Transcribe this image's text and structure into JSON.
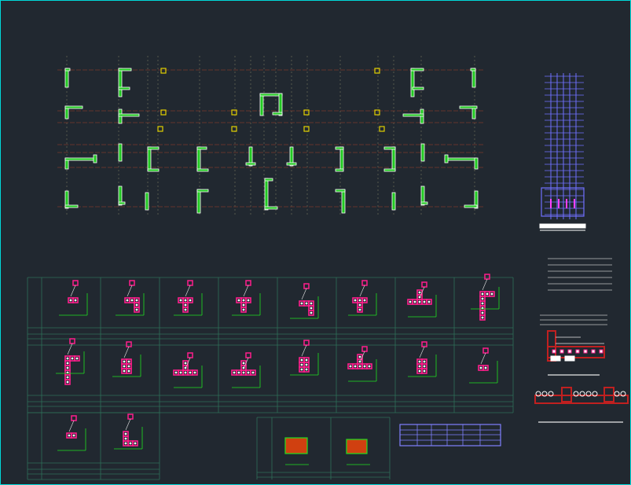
{
  "app": {
    "viewport_name": "drawing-model-space"
  },
  "colors": {
    "background": "#212830",
    "frame_border": "#00d8d8",
    "wall_outline": "#ffffff",
    "wall_fill": "#22c822",
    "hatch": "#3c6e3c",
    "axis_line": "#7a3a2a",
    "grid_line": "#8a8a6a",
    "yellow_column": "#e0d000",
    "table_line": "#2f6f58",
    "detail_rebar": "#ff1e8c",
    "detail_tie": "#e02020",
    "dim_green": "#20e020",
    "leader_white": "#e8e8e8",
    "blue_rebar": "#7070ff",
    "block_magenta": "#ff40ff",
    "schedule_border": "#8080ff",
    "legend_line": "#c0c0c0",
    "section_red": "#c02020",
    "section_fill": "#d04010"
  },
  "layers": [
    {
      "id": "plan",
      "name": "column-layout-plan"
    },
    {
      "id": "tower",
      "name": "column-rebar-elevation"
    },
    {
      "id": "legend",
      "name": "general-notes-lines"
    },
    {
      "id": "table",
      "name": "column-detail-table"
    },
    {
      "id": "section",
      "name": "wall-section-detail"
    },
    {
      "id": "schedule",
      "name": "rebar-schedule-table"
    }
  ]
}
